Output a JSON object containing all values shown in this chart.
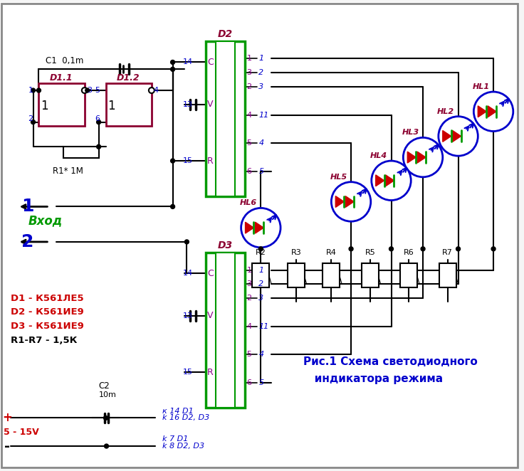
{
  "bg_color": "#f5f5f5",
  "title": "",
  "line_color": "#000000",
  "blue": "#0000cc",
  "dark_blue": "#000099",
  "red": "#cc0000",
  "dark_red": "#990000",
  "green": "#009900",
  "purple": "#880088",
  "crimson": "#8B0030",
  "caption": "Рис.1 Схема светодиодного\n   индикатора режима",
  "label_d1": "D1 - К561ЛЕ5",
  "label_d2": "D2 - К561ИЕ9",
  "label_d3": "D3 - К561ИЕ9",
  "label_r17": "R1-R7 - 1,5К",
  "label_c1": "C1  0,1m",
  "label_c2": "C2",
  "label_c2b": "10m",
  "label_v": "5 - 15V",
  "label_r1": "R1* 1M",
  "label_d2_title": "D2",
  "label_d3_title": "D3",
  "label_1": "1",
  "label_2": "2",
  "label_vhod": "Вход"
}
